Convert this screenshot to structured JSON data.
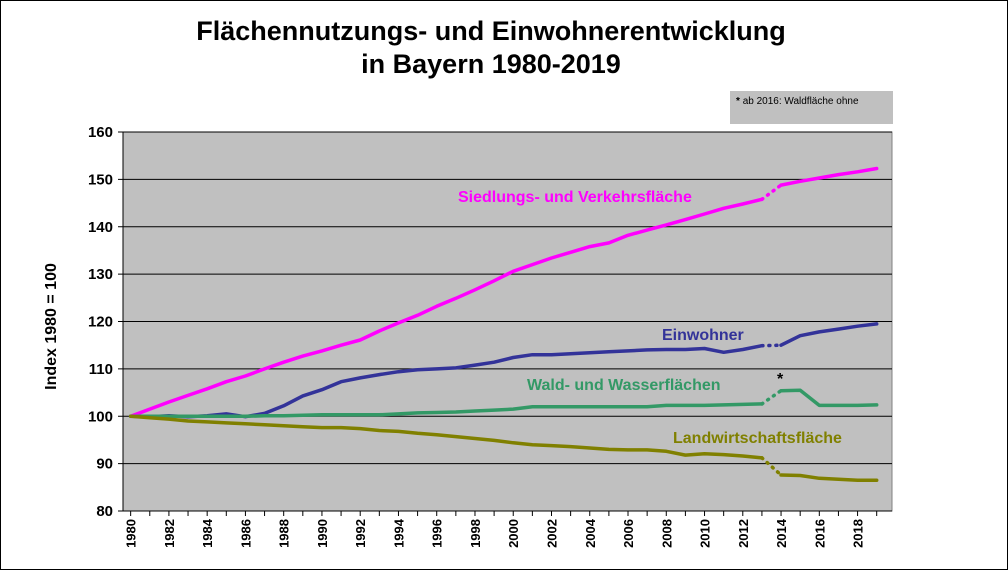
{
  "chart_data": {
    "type": "line",
    "title_line1": "Flächennutzungs- und Einwohnerentwicklung",
    "title_line2": "in Bayern 1980-2019",
    "note": "ab 2016: Waldfläche ohne",
    "note_marker": "*",
    "ylabel": "Index 1980 = 100",
    "xlabel": "",
    "ylim": [
      80,
      160
    ],
    "yticks": [
      80,
      90,
      100,
      110,
      120,
      130,
      140,
      150,
      160
    ],
    "xlim": [
      1980,
      2019
    ],
    "xticks": [
      1980,
      1982,
      1984,
      1986,
      1988,
      1990,
      1992,
      1994,
      1996,
      1998,
      2000,
      2002,
      2004,
      2006,
      2008,
      2010,
      2012,
      2014,
      2016,
      2018
    ],
    "grid": true,
    "break_interval": [
      2013,
      2014
    ],
    "colors": {
      "plot_bg": "#c0c0c0",
      "siedlung": "#ff00ff",
      "einwohner": "#333399",
      "wald": "#339966",
      "landwirtschaft": "#808000"
    },
    "series": [
      {
        "key": "siedlung",
        "name": "Siedlungs- und Verkehrsfläche",
        "x": [
          1980,
          1981,
          1982,
          1983,
          1984,
          1985,
          1986,
          1987,
          1988,
          1989,
          1990,
          1991,
          1992,
          1993,
          1994,
          1995,
          1996,
          1997,
          1998,
          1999,
          2000,
          2001,
          2002,
          2003,
          2004,
          2005,
          2006,
          2007,
          2008,
          2009,
          2010,
          2011,
          2012,
          2013,
          2014,
          2015,
          2016,
          2017,
          2018,
          2019
        ],
        "y": [
          100,
          101.5,
          103,
          104.4,
          105.8,
          107.3,
          108.5,
          110,
          111.4,
          112.7,
          113.8,
          115,
          116.1,
          118,
          119.7,
          121.3,
          123.2,
          124.9,
          126.7,
          128.6,
          130.6,
          132,
          133.4,
          134.6,
          135.8,
          136.6,
          138.2,
          139.3,
          140.4,
          141.5,
          142.7,
          143.9,
          144.8,
          145.8,
          148.8,
          149.6,
          150.3,
          151,
          151.6,
          152.3
        ]
      },
      {
        "key": "einwohner",
        "name": "Einwohner",
        "x": [
          1980,
          1981,
          1982,
          1983,
          1984,
          1985,
          1986,
          1987,
          1988,
          1989,
          1990,
          1991,
          1992,
          1993,
          1994,
          1995,
          1996,
          1997,
          1998,
          1999,
          2000,
          2001,
          2002,
          2003,
          2004,
          2005,
          2006,
          2007,
          2008,
          2009,
          2010,
          2011,
          2012,
          2013,
          2014,
          2015,
          2016,
          2017,
          2018,
          2019
        ],
        "y": [
          100,
          99.9,
          100.1,
          99.9,
          100.1,
          100.5,
          99.9,
          100.6,
          102.2,
          104.3,
          105.6,
          107.3,
          108.1,
          108.8,
          109.4,
          109.8,
          110,
          110.2,
          110.8,
          111.4,
          112.4,
          113,
          113,
          113.2,
          113.4,
          113.6,
          113.8,
          114,
          114.1,
          114.1,
          114.3,
          113.5,
          114.1,
          114.9,
          115,
          117,
          117.8,
          118.4,
          119,
          119.5
        ]
      },
      {
        "key": "wald",
        "name": "Wald- und Wasserflächen",
        "x": [
          1980,
          1981,
          1982,
          1983,
          1984,
          1985,
          1986,
          1987,
          1988,
          1989,
          1990,
          1991,
          1992,
          1993,
          1994,
          1995,
          1996,
          1997,
          1998,
          1999,
          2000,
          2001,
          2002,
          2003,
          2004,
          2005,
          2006,
          2007,
          2008,
          2009,
          2010,
          2011,
          2012,
          2013,
          2014,
          2015,
          2016,
          2017,
          2018,
          2019
        ],
        "y": [
          100,
          100,
          100,
          100,
          100,
          100,
          100,
          100.1,
          100.1,
          100.2,
          100.3,
          100.3,
          100.3,
          100.3,
          100.5,
          100.7,
          100.8,
          100.9,
          101.1,
          101.3,
          101.5,
          102,
          102,
          102,
          102,
          102,
          102,
          102,
          102.3,
          102.3,
          102.3,
          102.4,
          102.5,
          102.6,
          105.4,
          105.5,
          102.3,
          102.3,
          102.3,
          102.4
        ]
      },
      {
        "key": "landwirtschaft",
        "name": "Landwirtschaftsfläche",
        "x": [
          1980,
          1981,
          1982,
          1983,
          1984,
          1985,
          1986,
          1987,
          1988,
          1989,
          1990,
          1991,
          1992,
          1993,
          1994,
          1995,
          1996,
          1997,
          1998,
          1999,
          2000,
          2001,
          2002,
          2003,
          2004,
          2005,
          2006,
          2007,
          2008,
          2009,
          2010,
          2011,
          2012,
          2013,
          2014,
          2015,
          2016,
          2017,
          2018,
          2019
        ],
        "y": [
          100,
          99.7,
          99.4,
          99,
          98.8,
          98.6,
          98.4,
          98.2,
          98,
          97.8,
          97.6,
          97.6,
          97.4,
          97,
          96.8,
          96.4,
          96.1,
          95.7,
          95.3,
          94.9,
          94.4,
          94,
          93.8,
          93.6,
          93.3,
          93,
          92.9,
          92.9,
          92.6,
          91.8,
          92.1,
          91.9,
          91.6,
          91.2,
          87.6,
          87.5,
          86.9,
          86.7,
          86.5,
          86.5
        ]
      }
    ]
  }
}
